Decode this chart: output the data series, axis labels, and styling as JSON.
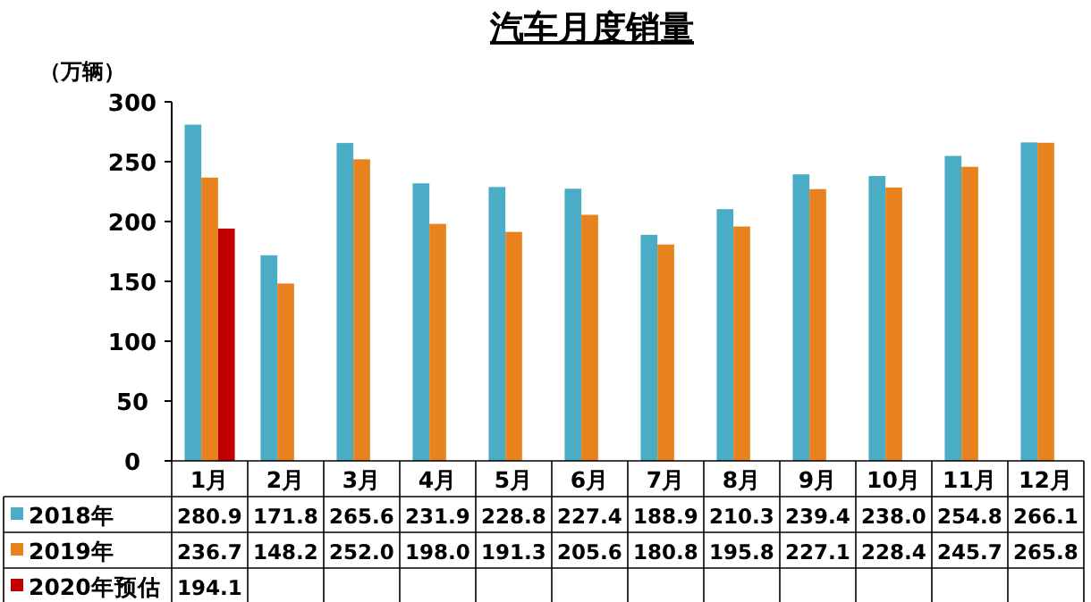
{
  "chart_data": {
    "type": "bar",
    "title": "汽车月度销量",
    "ylabel": "（万辆）",
    "categories": [
      "1月",
      "2月",
      "3月",
      "4月",
      "5月",
      "6月",
      "7月",
      "8月",
      "9月",
      "10月",
      "11月",
      "12月"
    ],
    "series": [
      {
        "name": "2018年",
        "color": "#4bacc6",
        "values": [
          280.9,
          171.8,
          265.6,
          231.9,
          228.8,
          227.4,
          188.9,
          210.3,
          239.4,
          238.0,
          254.8,
          266.1
        ],
        "value_labels": [
          "280.9",
          "171.8",
          "265.6",
          "231.9",
          "228.8",
          "227.4",
          "188.9",
          "210.3",
          "239.4",
          "238.0",
          "254.8",
          "266.1"
        ]
      },
      {
        "name": "2019年",
        "color": "#e8821e",
        "values": [
          236.7,
          148.2,
          252.0,
          198.0,
          191.3,
          205.6,
          180.8,
          195.8,
          227.1,
          228.4,
          245.7,
          265.8
        ],
        "value_labels": [
          "236.7",
          "148.2",
          "252.0",
          "198.0",
          "191.3",
          "205.6",
          "180.8",
          "195.8",
          "227.1",
          "228.4",
          "245.7",
          "265.8"
        ]
      },
      {
        "name": "2020年预估",
        "color": "#c00000",
        "values": [
          194.1,
          null,
          null,
          null,
          null,
          null,
          null,
          null,
          null,
          null,
          null,
          null
        ],
        "value_labels": [
          "194.1",
          null,
          null,
          null,
          null,
          null,
          null,
          null,
          null,
          null,
          null,
          null
        ]
      }
    ],
    "ylim": [
      0,
      300
    ],
    "yticks": [
      0,
      50,
      100,
      150,
      200,
      250,
      300
    ],
    "legend": "bottom"
  }
}
